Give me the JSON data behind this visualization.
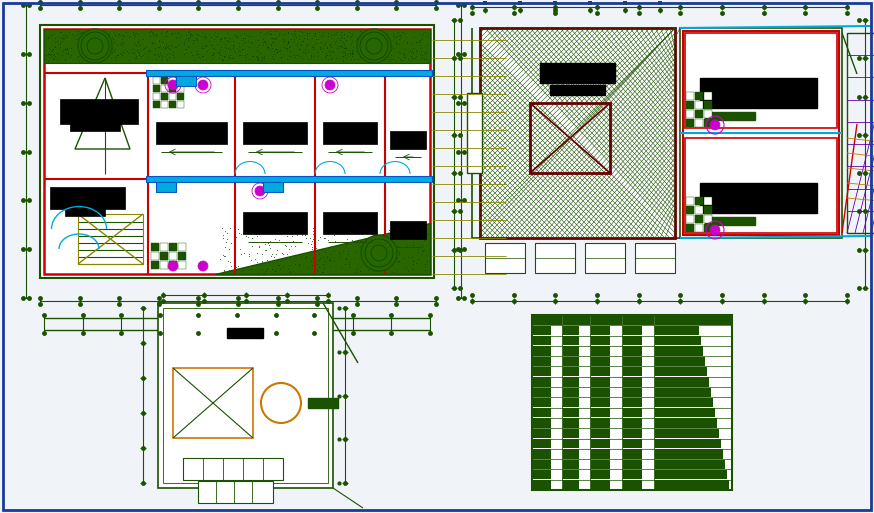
{
  "bg_color": "#f0f4f8",
  "border_color": "#1a3a99",
  "dg": "#1a5200",
  "red": "#cc0000",
  "dark_red": "#660000",
  "blue": "#0055cc",
  "cyan": "#00aadd",
  "magenta": "#cc00cc",
  "orange": "#cc7700",
  "gold": "#888800",
  "black": "#000000",
  "white": "#ffffff",
  "green_fill": "#2a6600",
  "green_dot": "#004400",
  "purple": "#6600aa"
}
